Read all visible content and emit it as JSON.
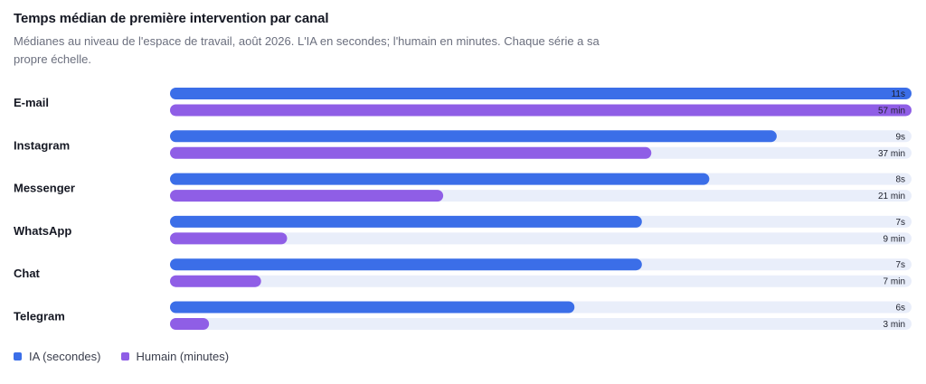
{
  "title": "Temps médian de première intervention par canal",
  "subtitle": "Médianes au niveau de l'espace de travail, août 2026. L'IA en secondes; l'humain en minutes. Chaque série a sa propre échelle.",
  "colors": {
    "ai": "#3b6ee8",
    "human": "#8f5ee6",
    "track": "#e9eefa"
  },
  "chart_data": {
    "type": "bar",
    "orientation": "horizontal",
    "categories": [
      "E-mail",
      "Instagram",
      "Messenger",
      "WhatsApp",
      "Chat",
      "Telegram"
    ],
    "series": [
      {
        "name": "IA (secondes)",
        "key": "ai",
        "values": [
          11,
          9,
          8,
          7,
          7,
          6
        ],
        "labels": [
          "11s",
          "9s",
          "8s",
          "7s",
          "7s",
          "6s"
        ],
        "max": 11
      },
      {
        "name": "Humain (minutes)",
        "key": "human",
        "values": [
          57,
          37,
          21,
          9,
          7,
          3
        ],
        "labels": [
          "57 min",
          "37 min",
          "21 min",
          "9 min",
          "7 min",
          "3 min"
        ],
        "max": 57
      }
    ],
    "legend": "bottom-left",
    "grid": false
  }
}
